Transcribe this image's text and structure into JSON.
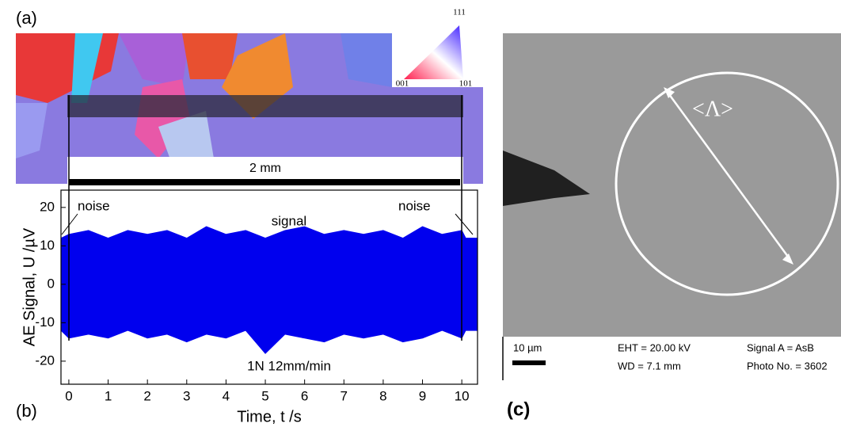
{
  "panel_a": {
    "label": "(a)",
    "legend": {
      "top": "111",
      "left": "001",
      "right": "101"
    },
    "scale_bar": "2 mm"
  },
  "chart_data": {
    "type": "band",
    "label": "(b)",
    "x_label": "Time, t /s",
    "y_label": "AE Signal, U /µV",
    "annotations": {
      "noise_left": "noise",
      "noise_right": "noise",
      "signal": "signal",
      "condition": "1N 12mm/min"
    },
    "x": [
      -0.2,
      0,
      0.5,
      1,
      1.5,
      2,
      2.5,
      3,
      3.5,
      4,
      4.5,
      5,
      5.5,
      6,
      6.5,
      7,
      7.5,
      8,
      8.5,
      9,
      9.5,
      10,
      10.1,
      10.4
    ],
    "series": [
      {
        "color": "#0000ee",
        "values": [
          12,
          13,
          14,
          12,
          14,
          13,
          14,
          12,
          15,
          13,
          14,
          12,
          14,
          15,
          13,
          14,
          13,
          14,
          12,
          15,
          13,
          14,
          12,
          12
        ]
      },
      {
        "color": "#0000ee",
        "values": [
          -12,
          -14,
          -13,
          -14,
          -12,
          -14,
          -13,
          -15,
          -13,
          -14,
          -12,
          -18,
          -13,
          -14,
          -15,
          -13,
          -14,
          -13,
          -15,
          -14,
          -12,
          -14,
          -12,
          -12
        ]
      }
    ],
    "xlim": [
      -0.2,
      10.4
    ],
    "ylim": [
      -26,
      24.5
    ],
    "xticks": [
      0,
      1,
      2,
      3,
      4,
      5,
      6,
      7,
      8,
      9,
      10
    ],
    "yticks": [
      -20,
      -10,
      0,
      10,
      20
    ]
  },
  "panel_c": {
    "label": "(c)",
    "symbol": "<Λ>",
    "scale": "10 µm",
    "eht": "EHT = 20.00 kV",
    "wd": "WD =  7.1 mm",
    "signal": "Signal A = AsB",
    "photo": "Photo No. = 3602"
  }
}
